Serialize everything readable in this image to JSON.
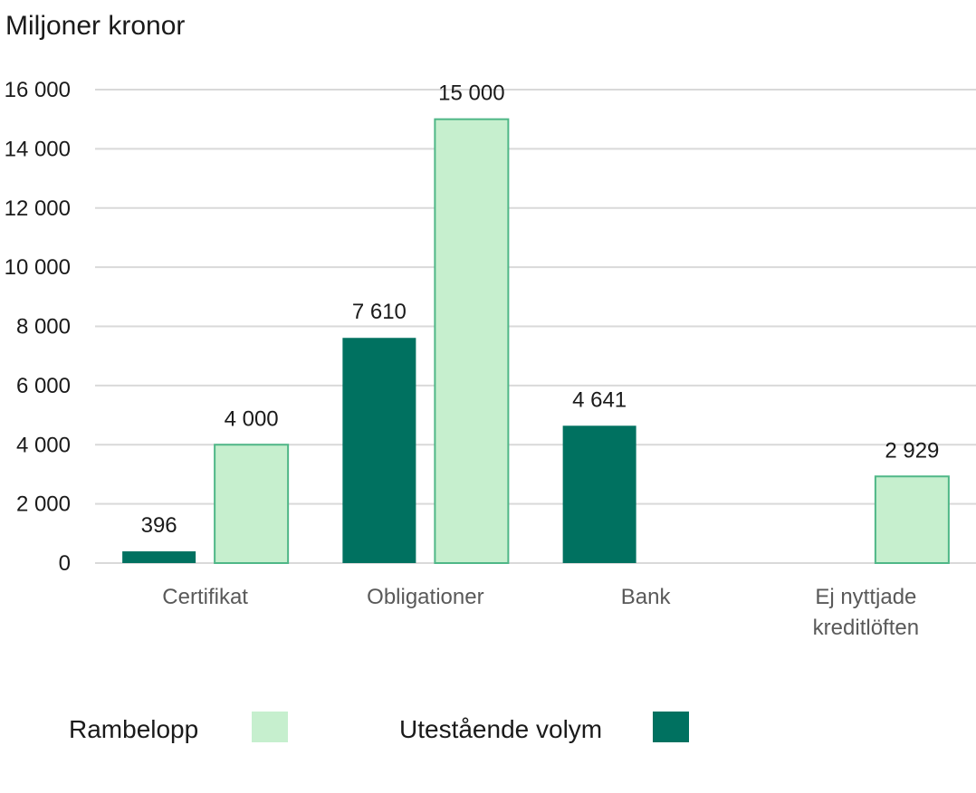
{
  "chart_data": {
    "type": "bar",
    "unit_label": "Miljoner kronor",
    "categories": [
      [
        "Certifikat"
      ],
      [
        "Obligationer"
      ],
      [
        "Bank"
      ],
      [
        "Ej nyttjade",
        "kreditlöften"
      ]
    ],
    "series": [
      {
        "name": "Utestående volym",
        "color": "#007160",
        "values": [
          396,
          7610,
          4641,
          null
        ],
        "labels": [
          "396",
          "7 610",
          "4 641",
          ""
        ]
      },
      {
        "name": "Rambelopp",
        "color": "#c6efce",
        "stroke": "#4fb787",
        "values": [
          4000,
          15000,
          null,
          2929
        ],
        "labels": [
          "4 000",
          "15 000",
          "",
          "2 929"
        ]
      }
    ],
    "ylim": [
      0,
      16000
    ],
    "yticks": [
      0,
      2000,
      4000,
      6000,
      8000,
      10000,
      12000,
      14000,
      16000
    ],
    "ytick_labels": [
      "0",
      "2 000",
      "4 000",
      "6 000",
      "8 000",
      "10 000",
      "12 000",
      "14 000",
      "16 000"
    ],
    "grid": true,
    "legend_position": "bottom",
    "legend_order": [
      "Rambelopp",
      "Utestående volym"
    ]
  }
}
